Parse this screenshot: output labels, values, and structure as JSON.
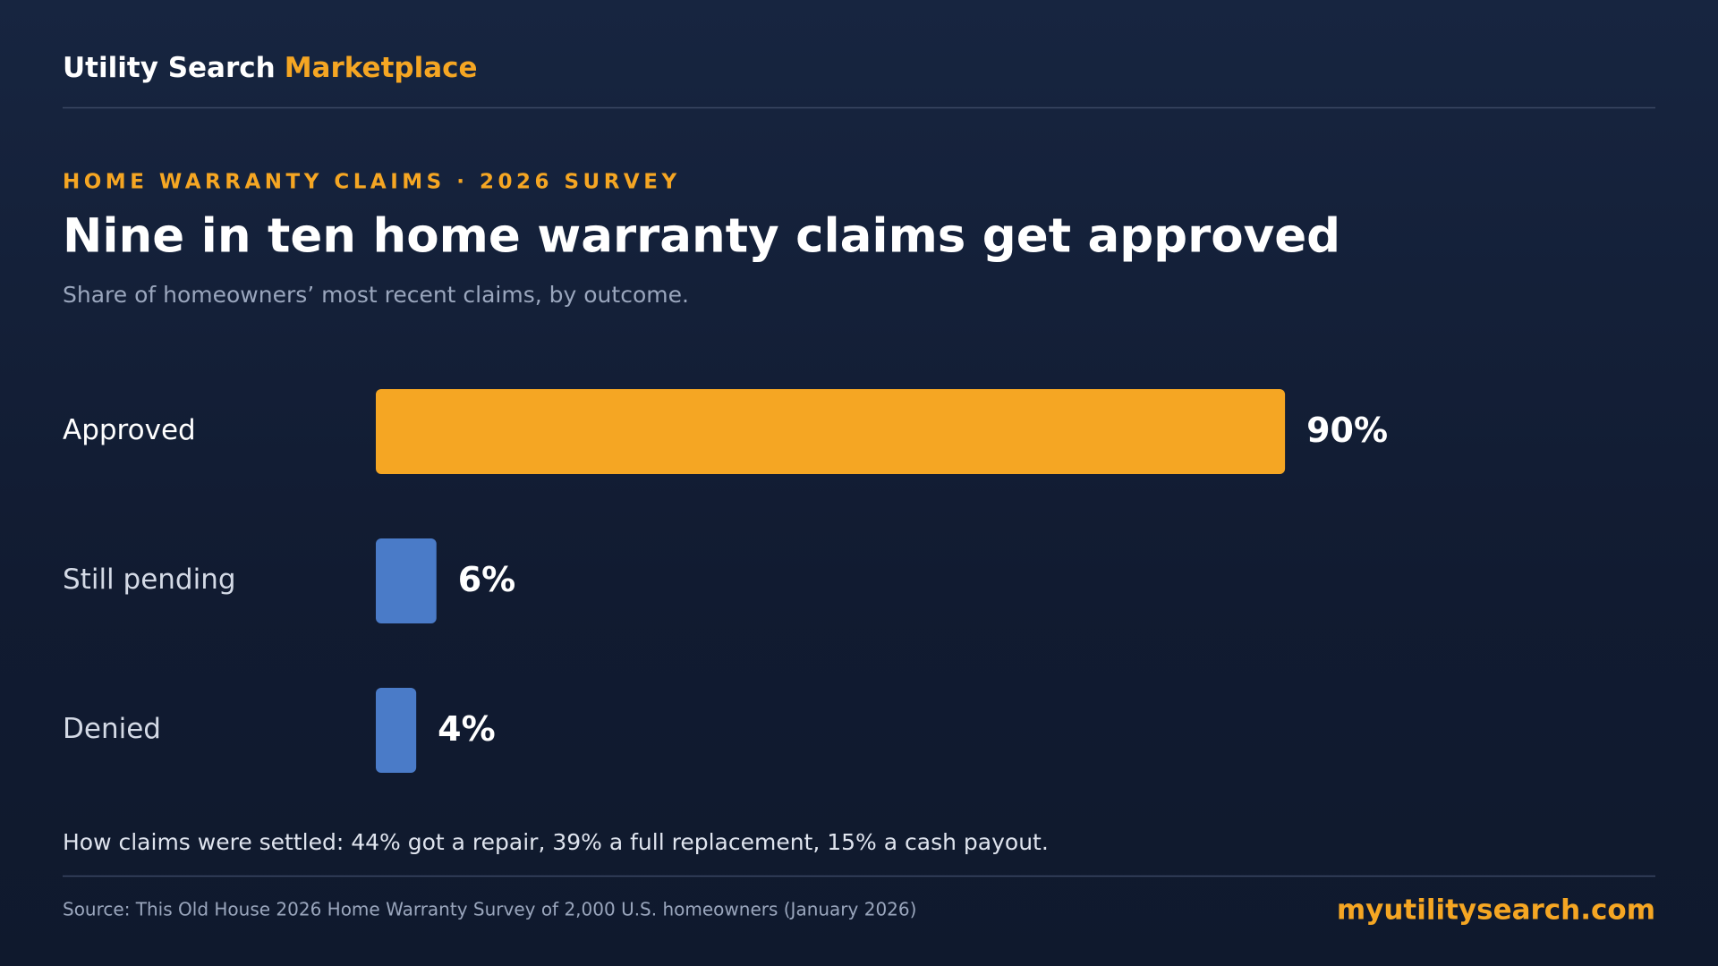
{
  "header": {
    "brand": "Utility Search",
    "brand_accent": "Marketplace"
  },
  "chart_data": {
    "type": "bar",
    "eyebrow": "HOME WARRANTY CLAIMS · 2026 SURVEY",
    "title": "Nine in ten home warranty claims get approved",
    "subtitle": "Share of homeowners’ most recent claims, by outcome.",
    "categories": [
      "Approved",
      "Still pending",
      "Denied"
    ],
    "values": [
      90,
      6,
      4
    ],
    "value_labels": [
      "90%",
      "6%",
      "4%"
    ],
    "colors": [
      "#f5a623",
      "#4a7bc8",
      "#4a7bc8"
    ],
    "note": "How claims were settled: 44% got a repair, 39% a full replacement, 15% a cash payout."
  },
  "footer": {
    "source": "Source: This Old House 2026 Home Warranty Survey of 2,000 U.S. homeowners (January 2026)",
    "url": "myutilitysearch.com"
  }
}
